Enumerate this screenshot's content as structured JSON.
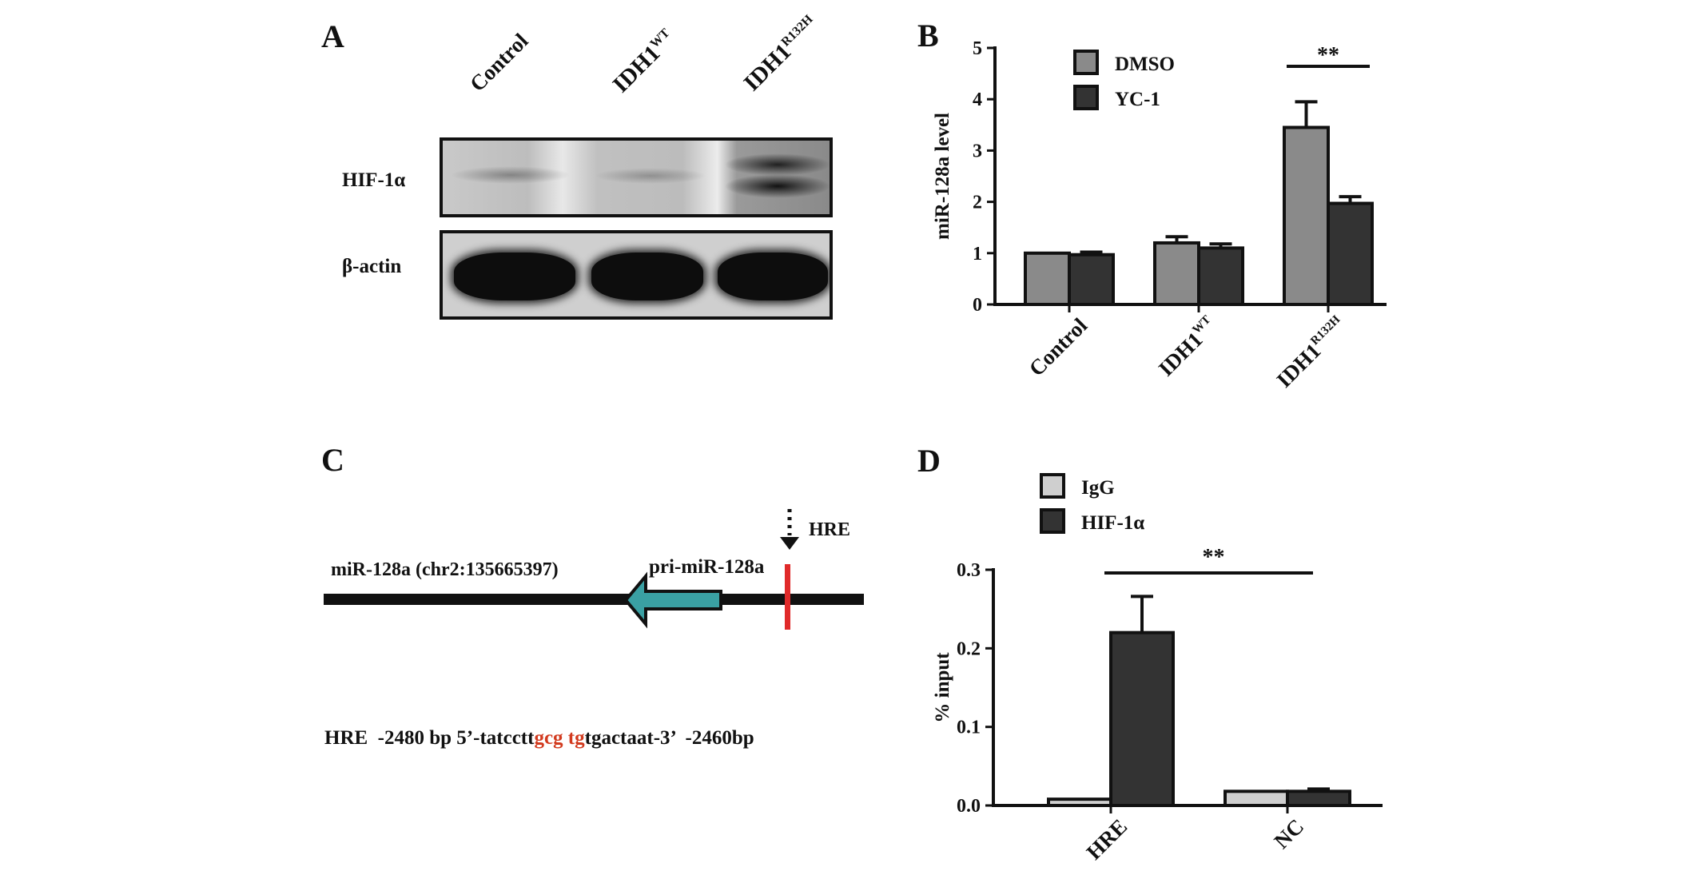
{
  "colors": {
    "dmso": "#8a8a8a",
    "yc1": "#333333",
    "igg": "#cfcfcf",
    "hif": "#333333",
    "arrow": "#3aa0a3",
    "hre_mark": "#e02a2a",
    "hre_motif": "#d23a1e",
    "ink": "#111111"
  },
  "panel_a": {
    "letter": "A",
    "lanes": [
      {
        "base": "Control",
        "sup": ""
      },
      {
        "base": "IDH1",
        "sup": "WT"
      },
      {
        "base": "IDH1",
        "sup": "R132H"
      }
    ],
    "blots": [
      {
        "label": "HIF-1α",
        "band_intensity": [
          0.2,
          0.15,
          0.8
        ]
      },
      {
        "label": "β-actin",
        "band_intensity": [
          1.0,
          1.0,
          1.0
        ]
      }
    ]
  },
  "panel_c": {
    "letter": "C",
    "gene_label": "miR-128a (chr2:135665397)",
    "pri_label": "pri-miR-128a",
    "hre_label": "HRE",
    "sequence": {
      "prefix": "HRE  -2480 bp 5’-tatcctt",
      "motif": "gcg tg",
      "suffix": "tgactaat-3’  -2460bp"
    }
  },
  "chart_data": [
    {
      "panel": "B",
      "type": "bar",
      "ylabel": "miR-128a level",
      "ylim": [
        0,
        5
      ],
      "yticks": [
        "0",
        "1",
        "2",
        "3",
        "4",
        "5"
      ],
      "categories": [
        {
          "base": "Control",
          "sup": ""
        },
        {
          "base": "IDH1",
          "sup": "WT"
        },
        {
          "base": "IDH1",
          "sup": "R132H"
        }
      ],
      "series": [
        {
          "name": "DMSO",
          "values": [
            1.0,
            1.2,
            3.45
          ],
          "errors": [
            0.0,
            0.12,
            0.5
          ]
        },
        {
          "name": "YC-1",
          "values": [
            0.97,
            1.1,
            1.97
          ],
          "errors": [
            0.05,
            0.08,
            0.13
          ]
        }
      ],
      "annotation": {
        "text": "**",
        "category": 2
      },
      "legend": "top-left"
    },
    {
      "panel": "D",
      "type": "bar",
      "ylabel": "% input",
      "ylim": [
        0,
        0.3
      ],
      "yticks": [
        "0.0",
        "0.1",
        "0.2",
        "0.3"
      ],
      "categories": [
        {
          "base": "HRE",
          "sup": ""
        },
        {
          "base": "NC",
          "sup": ""
        }
      ],
      "series": [
        {
          "name": "IgG",
          "values": [
            0.008,
            0.018
          ],
          "errors": [
            0.0,
            0.0
          ]
        },
        {
          "name": "HIF-1α",
          "values": [
            0.22,
            0.018
          ],
          "errors": [
            0.046,
            0.003
          ]
        }
      ],
      "annotation": {
        "text": "**",
        "from_category": 0,
        "to_category": 1
      },
      "legend": "top-left"
    }
  ]
}
